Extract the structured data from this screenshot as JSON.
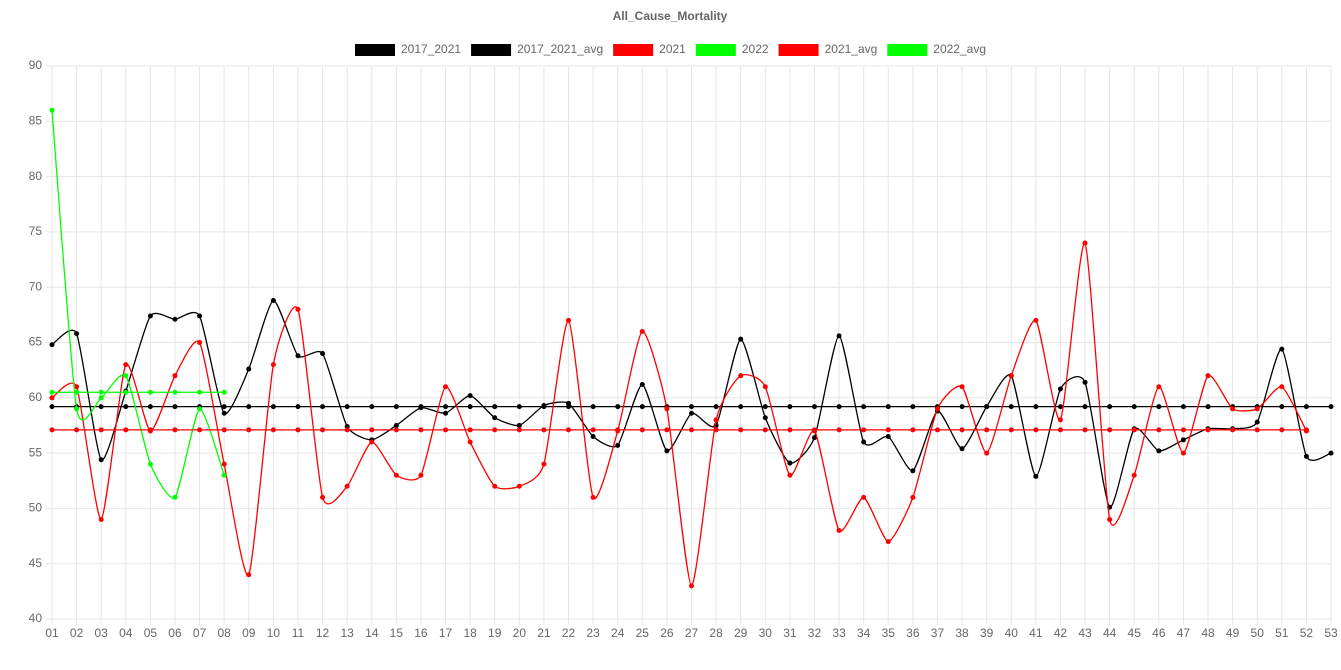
{
  "chart_data": {
    "type": "line",
    "title": "All_Cause_Mortality",
    "categories": [
      "01",
      "02",
      "03",
      "04",
      "05",
      "06",
      "07",
      "08",
      "09",
      "10",
      "11",
      "12",
      "13",
      "14",
      "15",
      "16",
      "17",
      "18",
      "19",
      "20",
      "21",
      "22",
      "23",
      "24",
      "25",
      "26",
      "27",
      "28",
      "29",
      "30",
      "31",
      "32",
      "33",
      "34",
      "35",
      "36",
      "37",
      "38",
      "39",
      "40",
      "41",
      "42",
      "43",
      "44",
      "45",
      "46",
      "47",
      "48",
      "49",
      "50",
      "51",
      "52",
      "53"
    ],
    "ylim": [
      40,
      90
    ],
    "yticks": [
      40,
      45,
      50,
      55,
      60,
      65,
      70,
      75,
      80,
      85,
      90
    ],
    "grid": true,
    "legend": "top",
    "series": [
      {
        "name": "2017_2021",
        "color": "#000000",
        "values": [
          64.8,
          65.8,
          54.4,
          60.6,
          67.4,
          67.1,
          67.4,
          58.6,
          62.6,
          68.8,
          63.8,
          64.0,
          57.4,
          56.2,
          57.5,
          59.1,
          58.6,
          60.2,
          58.2,
          57.5,
          59.3,
          59.5,
          56.5,
          55.7,
          61.2,
          55.2,
          58.6,
          57.5,
          65.3,
          58.2,
          54.1,
          56.4,
          65.6,
          56.0,
          56.5,
          53.4,
          58.8,
          55.4,
          59.2,
          62.0,
          52.9,
          60.8,
          61.4,
          50.1,
          57.2,
          55.2,
          56.2,
          57.2,
          57.2,
          57.8,
          64.4,
          54.7,
          55.0
        ]
      },
      {
        "name": "2017_2021_avg",
        "color": "#000000",
        "values": [
          59.2,
          59.2,
          59.2,
          59.2,
          59.2,
          59.2,
          59.2,
          59.2,
          59.2,
          59.2,
          59.2,
          59.2,
          59.2,
          59.2,
          59.2,
          59.2,
          59.2,
          59.2,
          59.2,
          59.2,
          59.2,
          59.2,
          59.2,
          59.2,
          59.2,
          59.2,
          59.2,
          59.2,
          59.2,
          59.2,
          59.2,
          59.2,
          59.2,
          59.2,
          59.2,
          59.2,
          59.2,
          59.2,
          59.2,
          59.2,
          59.2,
          59.2,
          59.2,
          59.2,
          59.2,
          59.2,
          59.2,
          59.2,
          59.2,
          59.2,
          59.2,
          59.2,
          59.2
        ]
      },
      {
        "name": "2021",
        "color": "#ff0000",
        "values": [
          60,
          61,
          49,
          63,
          57,
          62,
          65,
          54,
          44,
          63,
          68,
          51,
          52,
          56,
          53,
          53,
          61,
          56,
          52,
          52,
          54,
          67,
          51,
          57,
          66,
          59,
          43,
          58,
          62,
          61,
          53,
          57,
          48,
          51,
          47,
          51,
          59,
          61,
          55,
          62,
          67,
          58,
          74,
          49,
          53,
          61,
          55,
          62,
          59,
          59,
          61,
          57,
          null
        ]
      },
      {
        "name": "2022",
        "color": "#00ff00",
        "values": [
          86,
          59,
          60,
          62,
          54,
          51,
          59,
          53,
          null,
          null,
          null,
          null,
          null,
          null,
          null,
          null,
          null,
          null,
          null,
          null,
          null,
          null,
          null,
          null,
          null,
          null,
          null,
          null,
          null,
          null,
          null,
          null,
          null,
          null,
          null,
          null,
          null,
          null,
          null,
          null,
          null,
          null,
          null,
          null,
          null,
          null,
          null,
          null,
          null,
          null,
          null,
          null,
          null
        ]
      },
      {
        "name": "2021_avg",
        "color": "#ff0000",
        "values": [
          57.1,
          57.1,
          57.1,
          57.1,
          57.1,
          57.1,
          57.1,
          57.1,
          57.1,
          57.1,
          57.1,
          57.1,
          57.1,
          57.1,
          57.1,
          57.1,
          57.1,
          57.1,
          57.1,
          57.1,
          57.1,
          57.1,
          57.1,
          57.1,
          57.1,
          57.1,
          57.1,
          57.1,
          57.1,
          57.1,
          57.1,
          57.1,
          57.1,
          57.1,
          57.1,
          57.1,
          57.1,
          57.1,
          57.1,
          57.1,
          57.1,
          57.1,
          57.1,
          57.1,
          57.1,
          57.1,
          57.1,
          57.1,
          57.1,
          57.1,
          57.1,
          57.1,
          null
        ]
      },
      {
        "name": "2022_avg",
        "color": "#00ff00",
        "values": [
          60.5,
          60.5,
          60.5,
          60.5,
          60.5,
          60.5,
          60.5,
          60.5,
          null,
          null,
          null,
          null,
          null,
          null,
          null,
          null,
          null,
          null,
          null,
          null,
          null,
          null,
          null,
          null,
          null,
          null,
          null,
          null,
          null,
          null,
          null,
          null,
          null,
          null,
          null,
          null,
          null,
          null,
          null,
          null,
          null,
          null,
          null,
          null,
          null,
          null,
          null,
          null,
          null,
          null,
          null,
          null,
          null
        ]
      }
    ]
  }
}
